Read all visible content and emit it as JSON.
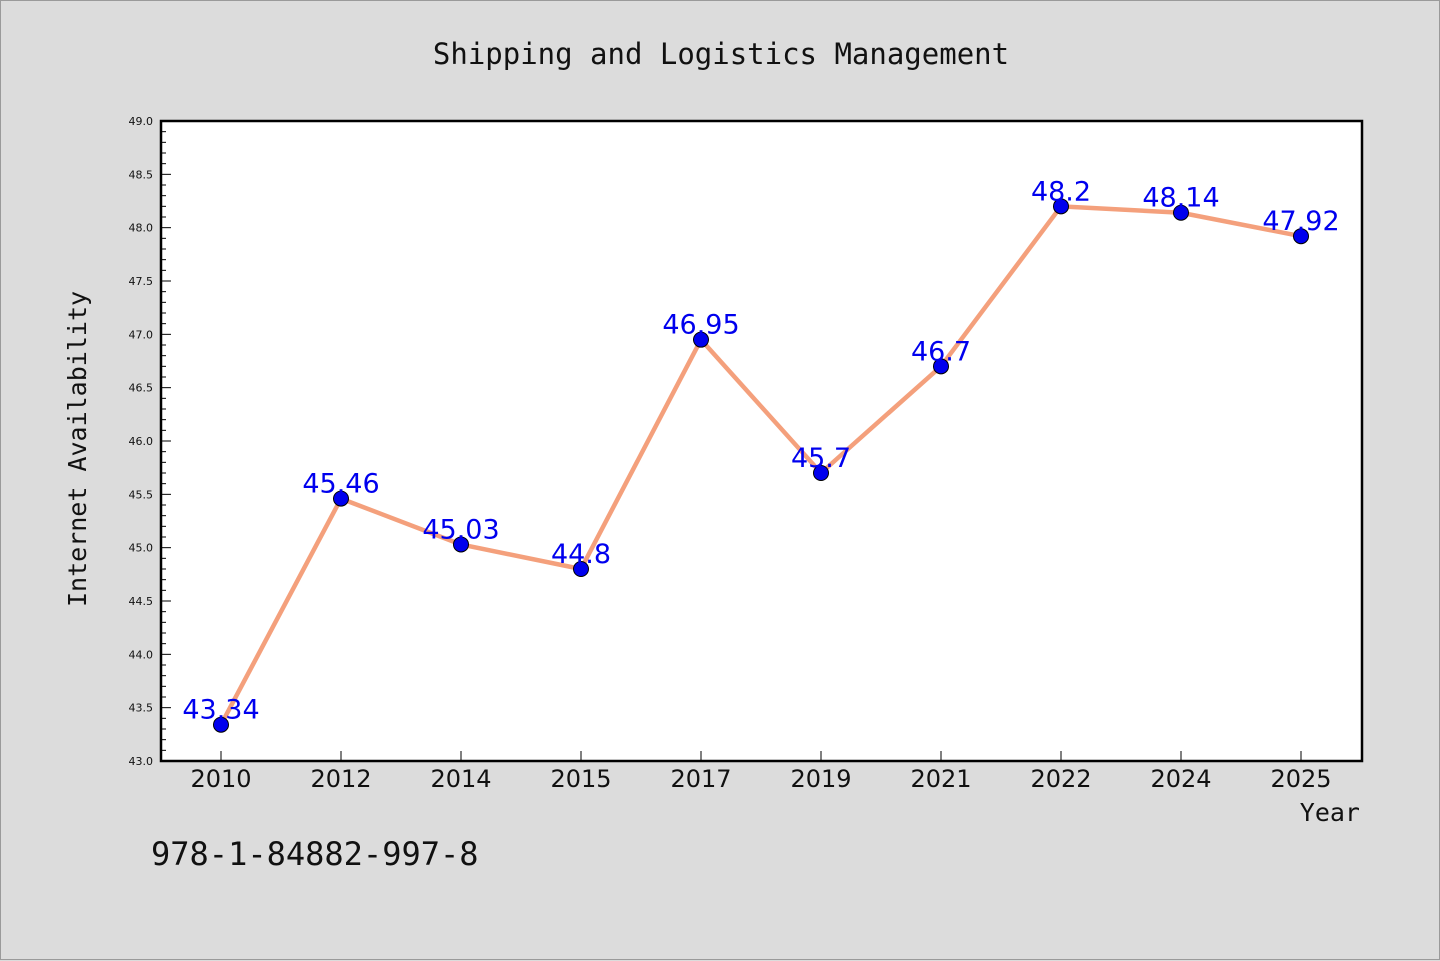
{
  "chart_data": {
    "type": "line",
    "title": "Shipping and Logistics Management",
    "xlabel": "Year",
    "ylabel": "Internet Availability",
    "categories": [
      "2010",
      "2012",
      "2014",
      "2015",
      "2017",
      "2019",
      "2021",
      "2022",
      "2024",
      "2025"
    ],
    "series": [
      {
        "values": [
          43.34,
          45.46,
          45.03,
          44.8,
          46.95,
          45.7,
          46.7,
          48.2,
          48.14,
          47.92
        ]
      }
    ],
    "data_labels": [
      "43.34",
      "45.46",
      "45.03",
      "44.8",
      "46.95",
      "45.7",
      "46.7",
      "48.2",
      "48.14",
      "47.92"
    ],
    "ylim": [
      43.0,
      49.0
    ],
    "y_ticks": [
      "43.0",
      "43.5",
      "44.0",
      "44.5",
      "45.0",
      "45.5",
      "46.0",
      "46.5",
      "47.0",
      "47.5",
      "48.0",
      "48.5",
      "49.0"
    ],
    "grid": false,
    "legend": "none",
    "colors": {
      "line": "#f4a07c",
      "marker": "#0000ee",
      "label": "#0000ee",
      "plot_background": "#ffffff",
      "figure_background": "#dcdcdc"
    }
  },
  "footer_text": "978-1-84882-997-8"
}
